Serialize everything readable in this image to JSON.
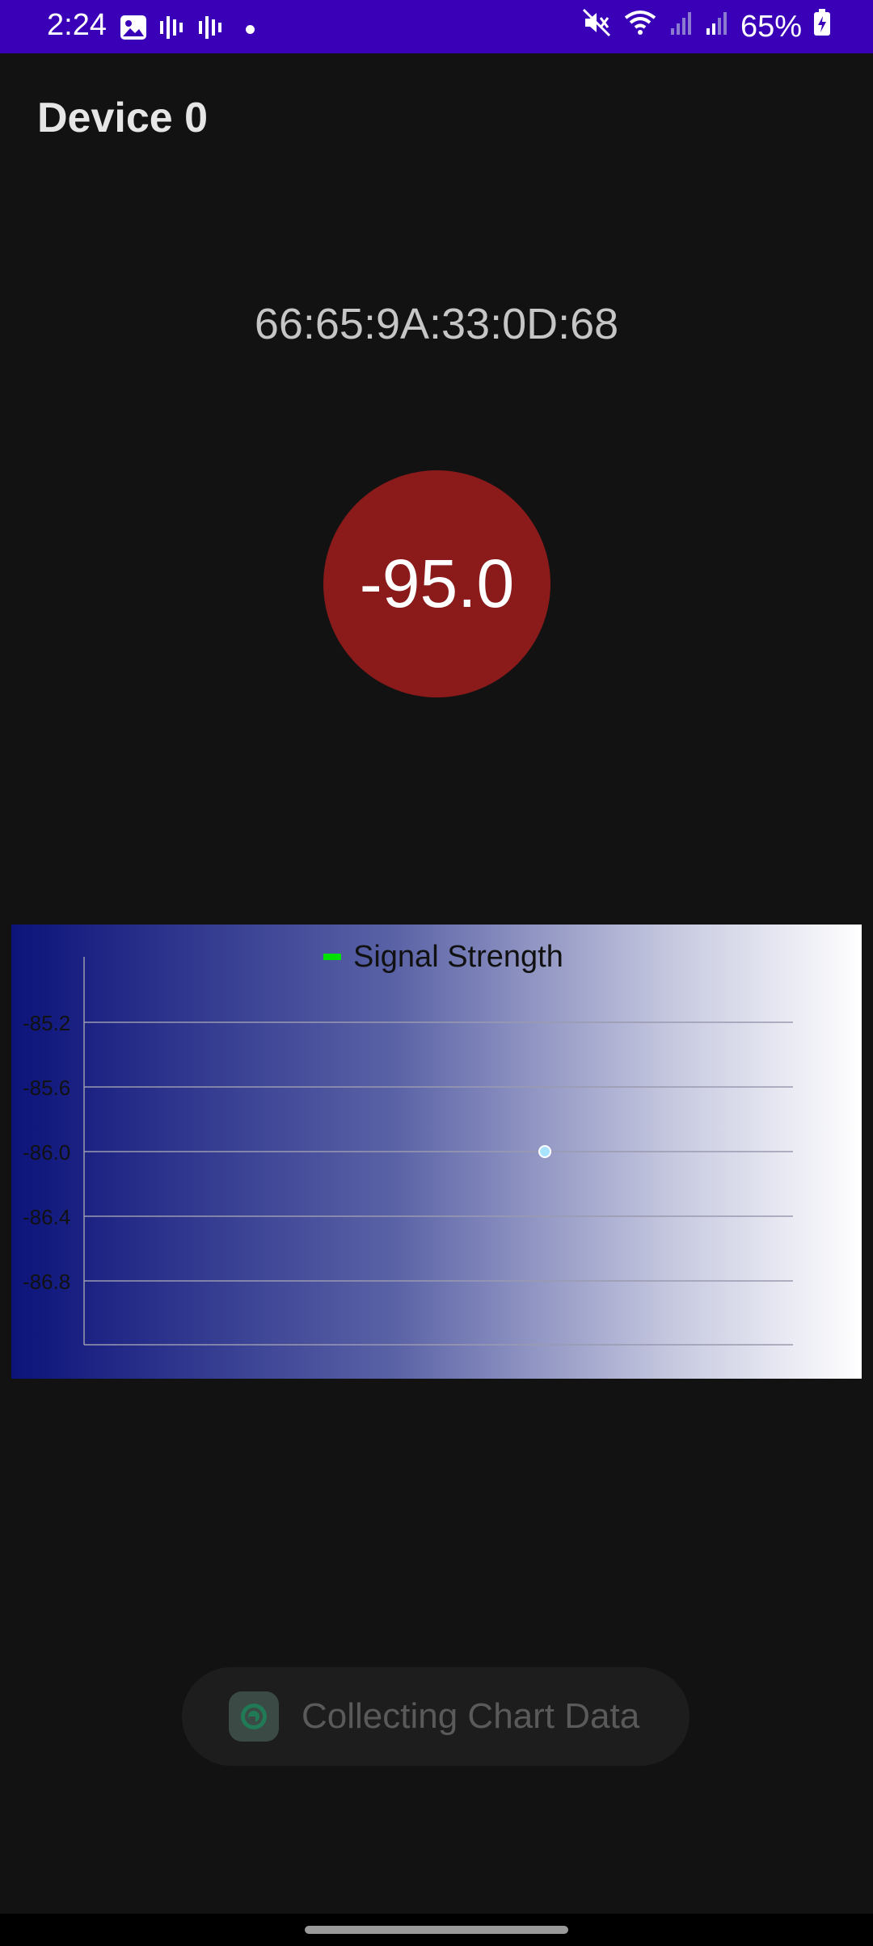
{
  "status_bar": {
    "time": "2:24",
    "battery": "65%",
    "icons": [
      "image-icon",
      "voicemail-icon",
      "voicemail-icon",
      "dot-icon",
      "mute-icon",
      "wifi-icon",
      "signal-icon",
      "signal-icon",
      "battery-charging-icon"
    ],
    "bg_color": "#3a00b8"
  },
  "header": {
    "title": "Device 0"
  },
  "device": {
    "mac": "66:65:9A:33:0D:68",
    "rssi": "-95.0",
    "rssi_color": "#8b1a1a"
  },
  "chart_data": {
    "type": "scatter",
    "title": "",
    "legend": "Signal Strength",
    "legend_color": "#00e000",
    "legend_position": "top-center",
    "xlabel": "",
    "ylabel": "",
    "ylim": [
      -87.2,
      -84.8
    ],
    "yticks": [
      -85.2,
      -85.6,
      -86.0,
      -86.4,
      -86.8
    ],
    "ytick_labels": [
      "-85.2",
      "-85.6",
      "-86.0",
      "-86.4",
      "-86.8"
    ],
    "grid": true,
    "series": [
      {
        "name": "Signal Strength",
        "points": [
          {
            "x": 0.65,
            "y": -86.0
          }
        ],
        "color": "#a8e4ff"
      }
    ]
  },
  "toast": {
    "text": "Collecting Chart Data"
  }
}
